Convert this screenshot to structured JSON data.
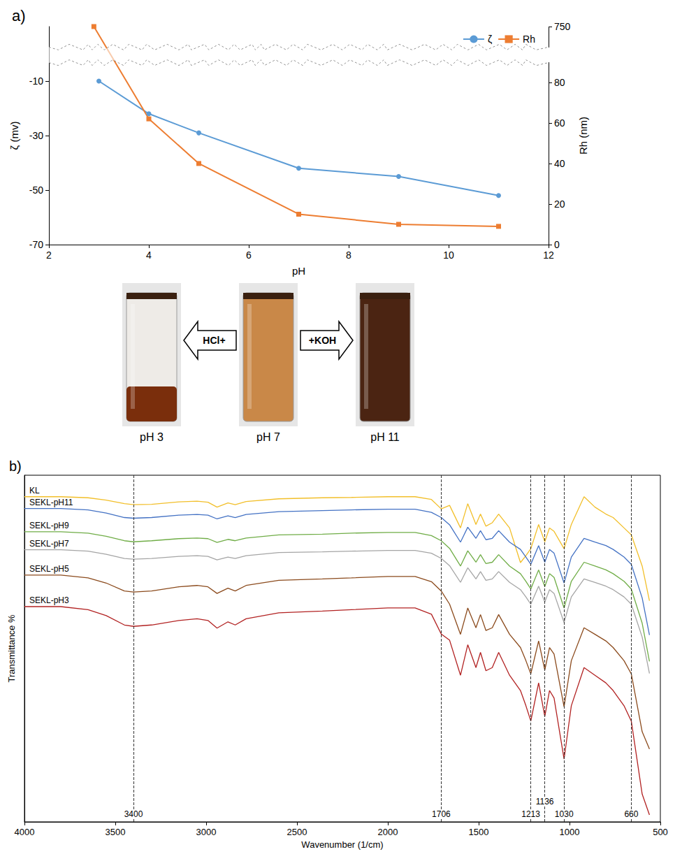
{
  "chart_data": [
    {
      "type": "line",
      "title": "a)",
      "xlabel": "pH",
      "ylabel": "ζ (mv)",
      "y2label": "Rh (nm)",
      "xlim": [
        2,
        12
      ],
      "xticks": [
        2,
        4,
        6,
        8,
        10,
        12
      ],
      "ylim": [
        -70,
        10
      ],
      "yticks": [
        -70,
        -50,
        -30,
        -10
      ],
      "y2lim": [
        0,
        750
      ],
      "y2ticks": [
        0,
        20,
        40,
        60,
        80,
        750
      ],
      "grid": false,
      "legend": "upper right",
      "series": [
        {
          "name": "ζ",
          "color": "#5b9bd5",
          "marker": "circle",
          "x": [
            3,
            4,
            5,
            7,
            9,
            11
          ],
          "values": [
            -10,
            -22,
            -29,
            -42,
            -45,
            -52
          ]
        },
        {
          "name": "Rh",
          "color": "#ed7d31",
          "marker": "square",
          "axis": "y2",
          "x": [
            2.9,
            4,
            5,
            7,
            9,
            11
          ],
          "values": [
            750,
            62,
            40,
            15,
            10,
            9
          ]
        }
      ]
    },
    {
      "type": "line",
      "title": "b)",
      "xlabel": "Wavenumber (1/cm)",
      "ylabel": "Transmittance %",
      "xlim": [
        4000,
        500
      ],
      "xticks": [
        4000,
        3500,
        3000,
        2500,
        2000,
        1500,
        1000,
        500
      ],
      "ylim": [
        0,
        100
      ],
      "tick_labels": "x",
      "grid": false,
      "annotations": [
        3400,
        1706,
        1213,
        1136,
        1030,
        660
      ],
      "x": [
        4000,
        3800,
        3650,
        3550,
        3450,
        3400,
        3300,
        3150,
        3050,
        2990,
        2940,
        2880,
        2840,
        2780,
        2600,
        2360,
        2200,
        2000,
        1850,
        1760,
        1706,
        1660,
        1600,
        1560,
        1515,
        1490,
        1460,
        1425,
        1390,
        1330,
        1270,
        1240,
        1213,
        1170,
        1136,
        1110,
        1085,
        1030,
        990,
        920,
        860,
        800,
        760,
        700,
        660,
        600,
        560
      ],
      "series": [
        {
          "name": "KL",
          "color": "#f2bf2a",
          "values": [
            93.8,
            93.8,
            93.5,
            92.8,
            91.8,
            91.5,
            91.6,
            92.3,
            92.5,
            92.2,
            90.8,
            92.0,
            91.5,
            92.4,
            93.2,
            93.5,
            93.6,
            93.8,
            93.8,
            93.0,
            90.3,
            91.3,
            84.8,
            91.8,
            85.8,
            88.8,
            85.3,
            86.3,
            88.8,
            84.8,
            74.8,
            76.8,
            78.8,
            85.8,
            80.8,
            84.8,
            83.8,
            78.8,
            85.8,
            93.8,
            90.8,
            88.8,
            87.8,
            84.8,
            82.8,
            73.8,
            63.8
          ]
        },
        {
          "name": "SEKL-pH11",
          "color": "#4472c4",
          "values": [
            90.4,
            90.4,
            90.0,
            89.1,
            87.8,
            87.6,
            87.8,
            88.5,
            88.7,
            88.5,
            87.4,
            88.3,
            87.8,
            88.7,
            89.5,
            89.8,
            90.0,
            90.2,
            90.2,
            89.3,
            87.8,
            85.7,
            80.7,
            85.0,
            81.8,
            84.0,
            81.4,
            81.8,
            84.0,
            80.7,
            78.6,
            76.4,
            74.3,
            79.7,
            74.9,
            78.6,
            77.5,
            68.9,
            76.4,
            81.8,
            80.7,
            79.7,
            78.6,
            76.4,
            74.3,
            64.6,
            53.9
          ]
        },
        {
          "name": "SEKL-pH9",
          "color": "#70ad47",
          "values": [
            83.7,
            83.7,
            83.3,
            82.4,
            81.1,
            80.8,
            81.1,
            81.7,
            81.9,
            81.7,
            80.6,
            81.5,
            81.1,
            81.9,
            82.8,
            83.0,
            83.3,
            83.5,
            83.5,
            82.6,
            81.1,
            78.9,
            73.8,
            78.2,
            74.9,
            77.1,
            74.5,
            74.9,
            77.1,
            73.8,
            71.6,
            69.4,
            67.2,
            72.7,
            67.9,
            71.6,
            70.5,
            61.7,
            69.4,
            74.9,
            73.8,
            72.7,
            71.6,
            69.4,
            67.2,
            57.3,
            46.3
          ]
        },
        {
          "name": "SEKL-pH7",
          "color": "#a5a5a5",
          "values": [
            78.5,
            78.5,
            78.1,
            77.2,
            76.0,
            75.8,
            76.0,
            76.6,
            76.8,
            76.6,
            75.6,
            76.4,
            76.0,
            76.8,
            77.7,
            77.9,
            78.1,
            78.3,
            78.3,
            77.5,
            76.0,
            73.9,
            69.1,
            73.3,
            70.1,
            72.2,
            69.7,
            70.1,
            72.2,
            69.1,
            67.0,
            64.9,
            62.8,
            68.0,
            63.4,
            67.0,
            65.9,
            57.5,
            64.9,
            70.1,
            69.1,
            68.0,
            67.0,
            64.9,
            62.8,
            53.3,
            42.8
          ]
        },
        {
          "name": "SEKL-pH5",
          "color": "#8b4a1c",
          "values": [
            71.2,
            71.2,
            70.4,
            68.9,
            66.6,
            66.3,
            66.6,
            67.8,
            68.2,
            67.8,
            65.9,
            67.4,
            66.6,
            68.2,
            69.7,
            70.1,
            70.4,
            70.8,
            70.8,
            69.3,
            66.6,
            62.8,
            54.1,
            61.7,
            56.0,
            59.8,
            55.2,
            56.0,
            59.8,
            54.1,
            50.3,
            46.5,
            42.7,
            52.2,
            43.8,
            50.3,
            48.4,
            33.2,
            46.5,
            56.0,
            54.1,
            52.2,
            50.3,
            46.5,
            42.7,
            26.0,
            21.0
          ]
        },
        {
          "name": "SEKL-pH3",
          "color": "#b22222",
          "values": [
            62.1,
            62.1,
            61.2,
            59.5,
            56.8,
            56.4,
            56.8,
            58.1,
            58.6,
            58.1,
            55.9,
            57.7,
            56.8,
            58.6,
            60.3,
            60.8,
            61.2,
            61.7,
            61.7,
            59.9,
            54.2,
            52.4,
            42.3,
            51.1,
            44.5,
            48.9,
            43.6,
            44.5,
            48.9,
            42.3,
            37.9,
            33.5,
            29.1,
            40.1,
            30.4,
            37.9,
            35.7,
            18.1,
            33.5,
            44.5,
            42.3,
            40.1,
            37.9,
            33.5,
            29.1,
            8.0,
            2.0
          ]
        }
      ]
    }
  ],
  "diagram": {
    "vials": [
      {
        "label": "pH 3"
      },
      {
        "label": "pH 7"
      },
      {
        "label": "pH 11"
      }
    ],
    "arrows": [
      {
        "label": "HCl+",
        "from": "pH 7",
        "to": "pH 3"
      },
      {
        "label": "+KOH",
        "from": "pH 7",
        "to": "pH 11"
      }
    ]
  }
}
